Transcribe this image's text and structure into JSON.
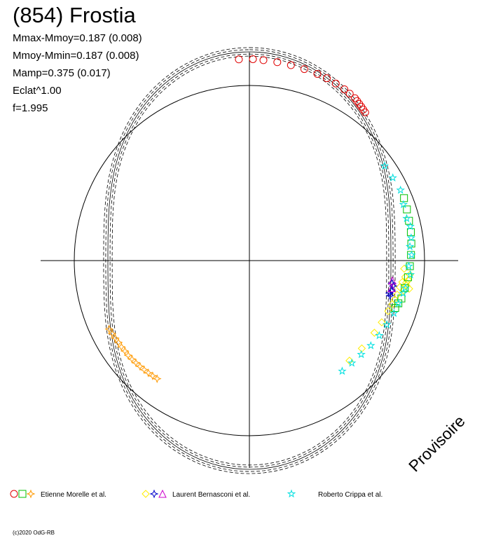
{
  "header": {
    "title": "(854) Frostia",
    "stats": [
      "Mmax-Mmoy=0.187 (0.008)",
      "Mmoy-Mmin=0.187 (0.008)",
      "Mamp=0.375 (0.017)",
      "Eclat^1.00",
      "f=1.995"
    ]
  },
  "watermark": "Provisoire",
  "copyright": "(c)2020 OdG-RB",
  "legend": [
    {
      "label": "Etienne Morelle et al.",
      "symbols": [
        "circle",
        "square",
        "star4"
      ],
      "colors": [
        "#e00000",
        "#00c000",
        "#ff9900"
      ]
    },
    {
      "label": "Laurent Bernasconi et al.",
      "symbols": [
        "diamond",
        "star4",
        "triangle"
      ],
      "colors": [
        "#ffee00",
        "#0000cc",
        "#cc00cc"
      ]
    },
    {
      "label": "Roberto Crippa et al.",
      "symbols": [
        "star5"
      ],
      "colors": [
        "#00e0e0"
      ]
    }
  ],
  "chart_data": {
    "type": "polar-lightcurve",
    "title": "(854) Frostia",
    "amplitude_mag": 0.375,
    "reference_circle": true,
    "model_curves": 5,
    "series": [
      {
        "name": "Etienne Morelle et al.",
        "marker": "circle",
        "color": "#e00000",
        "points": [
          [
            -3,
            -0.47
          ],
          [
            1,
            -0.47
          ],
          [
            4,
            -0.46
          ],
          [
            8,
            -0.45
          ],
          [
            12,
            -0.44
          ],
          [
            16,
            -0.43
          ],
          [
            20,
            -0.42
          ],
          [
            23,
            -0.41
          ],
          [
            26,
            -0.39
          ],
          [
            29,
            -0.37
          ],
          [
            31,
            -0.35
          ],
          [
            33,
            -0.33
          ],
          [
            34,
            -0.31
          ],
          [
            35,
            -0.29
          ],
          [
            36,
            -0.27
          ],
          [
            37,
            -0.25
          ],
          [
            38,
            -0.23
          ]
        ]
      },
      {
        "name": "Laurent Bernasconi et al.",
        "marker": "diamond",
        "color": "#ffee00",
        "points": [
          [
            95,
            0.25
          ],
          [
            100,
            0.23
          ],
          [
            97,
            0.27
          ],
          [
            99,
            0.29
          ],
          [
            98,
            0.3
          ],
          [
            101,
            0.32
          ],
          [
            96,
            0.33
          ],
          [
            93,
            0.36
          ],
          [
            98,
            0.37
          ],
          [
            100,
            0.4
          ],
          [
            103,
            0.42
          ],
          [
            105,
            0.44
          ],
          [
            107,
            0.46
          ],
          [
            110,
            0.49
          ],
          [
            115,
            0.52
          ],
          [
            120,
            0.55
          ],
          [
            128,
            0.58
          ],
          [
            135,
            0.6
          ]
        ]
      },
      {
        "name": "Laurent Bernasconi et al. (2)",
        "marker": "star4",
        "color": "#0000cc",
        "points": [
          [
            100,
            0.52
          ],
          [
            102,
            0.53
          ],
          [
            104,
            0.54
          ],
          [
            99,
            0.55
          ],
          [
            103,
            0.56
          ]
        ]
      },
      {
        "name": "Laurent Bernasconi et al. (3)",
        "marker": "triangle",
        "color": "#cc00cc",
        "points": [
          [
            101,
            0.54
          ],
          [
            98,
            0.55
          ]
        ]
      },
      {
        "name": "Etienne Morelle et al. (2)",
        "marker": "square",
        "color": "#00c000",
        "points": [
          [
            68,
            0.15
          ],
          [
            72,
            0.17
          ],
          [
            76,
            0.19
          ],
          [
            80,
            0.2
          ],
          [
            84,
            0.22
          ],
          [
            88,
            0.24
          ],
          [
            92,
            0.26
          ],
          [
            96,
            0.28
          ],
          [
            100,
            0.31
          ],
          [
            104,
            0.33
          ],
          [
            106,
            0.36
          ],
          [
            108,
            0.39
          ]
        ]
      },
      {
        "name": "Etienne Morelle et al. (3)",
        "marker": "star4",
        "color": "#ff9900",
        "points": [
          [
            218,
            0.45
          ],
          [
            220,
            0.44
          ],
          [
            222,
            0.43
          ],
          [
            224,
            0.42
          ],
          [
            226,
            0.41
          ],
          [
            228,
            0.4
          ],
          [
            230,
            0.39
          ],
          [
            232,
            0.38
          ],
          [
            234,
            0.38
          ],
          [
            236,
            0.37
          ],
          [
            238,
            0.37
          ],
          [
            240,
            0.36
          ],
          [
            242,
            0.35
          ],
          [
            244,
            0.34
          ]
        ]
      },
      {
        "name": "Roberto Crippa et al.",
        "marker": "star5",
        "color": "#00e0e0",
        "points": [
          [
            55,
            0.18
          ],
          [
            60,
            0.17
          ],
          [
            65,
            0.15
          ],
          [
            70,
            0.2
          ],
          [
            75,
            0.22
          ],
          [
            78,
            0.19
          ],
          [
            82,
            0.21
          ],
          [
            85,
            0.25
          ],
          [
            88,
            0.23
          ],
          [
            92,
            0.28
          ],
          [
            95,
            0.24
          ],
          [
            100,
            0.3
          ],
          [
            102,
            0.32
          ],
          [
            106,
            0.36
          ],
          [
            110,
            0.38
          ],
          [
            115,
            0.42
          ],
          [
            120,
            0.45
          ],
          [
            125,
            0.48
          ],
          [
            130,
            0.52
          ],
          [
            135,
            0.54
          ],
          [
            140,
            0.55
          ]
        ]
      }
    ]
  }
}
